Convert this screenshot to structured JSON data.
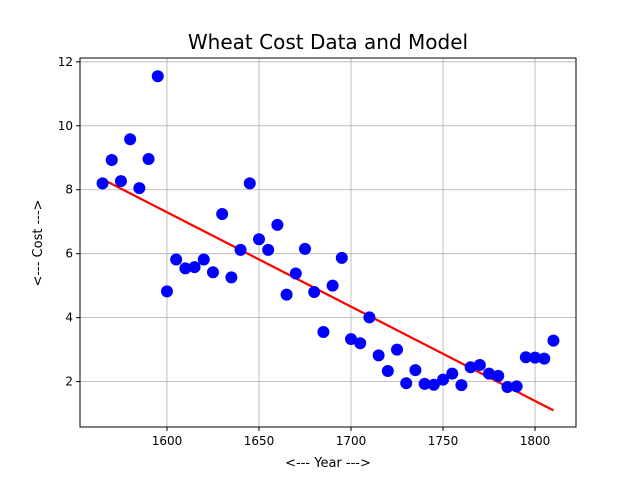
{
  "chart_data": {
    "type": "scatter",
    "title": "Wheat Cost Data and Model",
    "xlabel": "<--- Year --->",
    "ylabel": "<--- Cost --->",
    "xlim": [
      1552.75,
      1822.25
    ],
    "ylim": [
      0.58,
      12.12
    ],
    "xticks": [
      1600,
      1650,
      1700,
      1750,
      1800
    ],
    "yticks": [
      2,
      4,
      6,
      8,
      10,
      12
    ],
    "grid": true,
    "series": [
      {
        "kind": "scatter",
        "color": "#0000ff",
        "points": [
          [
            1565,
            8.2
          ],
          [
            1570,
            8.93
          ],
          [
            1575,
            8.27
          ],
          [
            1580,
            9.58
          ],
          [
            1585,
            8.05
          ],
          [
            1590,
            8.96
          ],
          [
            1595,
            11.55
          ],
          [
            1600,
            4.82
          ],
          [
            1605,
            5.82
          ],
          [
            1610,
            5.54
          ],
          [
            1615,
            5.58
          ],
          [
            1620,
            5.82
          ],
          [
            1625,
            5.42
          ],
          [
            1630,
            7.24
          ],
          [
            1635,
            5.26
          ],
          [
            1640,
            6.12
          ],
          [
            1645,
            8.2
          ],
          [
            1650,
            6.45
          ],
          [
            1655,
            6.12
          ],
          [
            1660,
            6.9
          ],
          [
            1665,
            4.72
          ],
          [
            1670,
            5.38
          ],
          [
            1675,
            6.15
          ],
          [
            1680,
            4.8
          ],
          [
            1685,
            3.55
          ],
          [
            1690,
            5.0
          ],
          [
            1695,
            5.87
          ],
          [
            1700,
            3.33
          ],
          [
            1705,
            3.2
          ],
          [
            1710,
            4.01
          ],
          [
            1715,
            2.82
          ],
          [
            1720,
            2.33
          ],
          [
            1725,
            3.0
          ],
          [
            1730,
            1.95
          ],
          [
            1735,
            2.36
          ],
          [
            1740,
            1.93
          ],
          [
            1745,
            1.9
          ],
          [
            1750,
            2.06
          ],
          [
            1755,
            2.25
          ],
          [
            1760,
            1.89
          ],
          [
            1765,
            2.45
          ],
          [
            1770,
            2.52
          ],
          [
            1775,
            2.25
          ],
          [
            1780,
            2.18
          ],
          [
            1785,
            1.83
          ],
          [
            1790,
            1.85
          ],
          [
            1795,
            2.76
          ],
          [
            1800,
            2.75
          ],
          [
            1805,
            2.72
          ],
          [
            1810,
            3.28
          ]
        ]
      },
      {
        "kind": "line",
        "color": "#ff0000",
        "points": [
          [
            1565,
            8.33
          ],
          [
            1810,
            1.1
          ]
        ]
      }
    ]
  }
}
